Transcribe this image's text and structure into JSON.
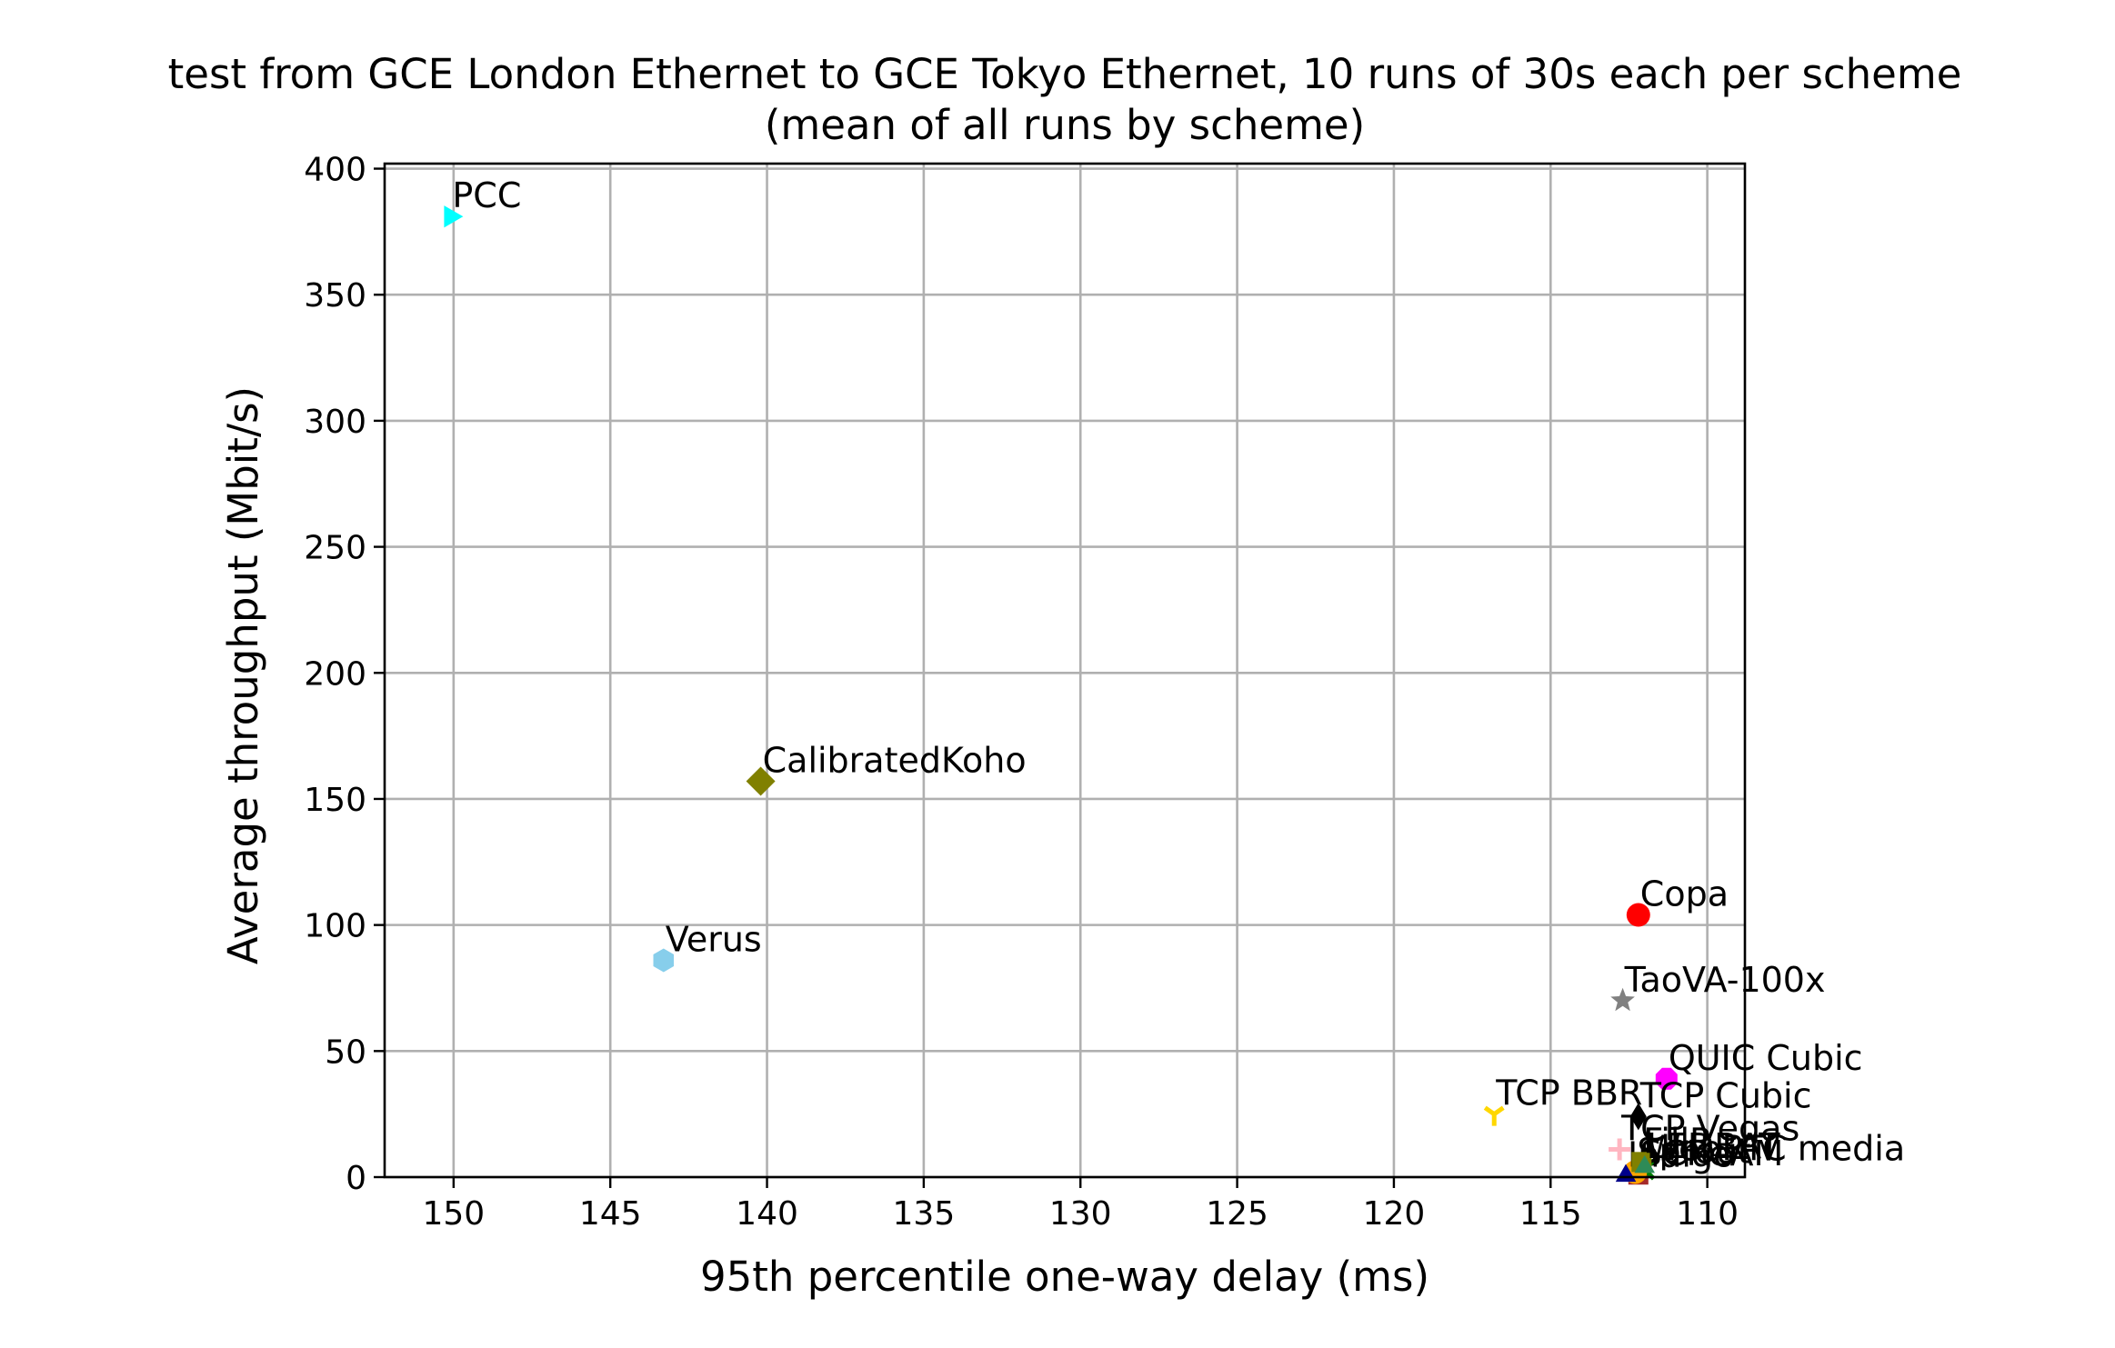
{
  "chart_data": {
    "type": "scatter",
    "title": "test from GCE London Ethernet to GCE Tokyo Ethernet, 10 runs of 30s each per scheme",
    "subtitle": "(mean of all runs by scheme)",
    "xlabel": "95th percentile one-way delay (ms)",
    "ylabel": "Average throughput (Mbit/s)",
    "xlim": [
      152.2,
      108.8
    ],
    "ylim": [
      0,
      402
    ],
    "x_inverted": true,
    "grid": true,
    "xticks": [
      150,
      145,
      140,
      135,
      130,
      125,
      120,
      115,
      110
    ],
    "yticks": [
      0,
      50,
      100,
      150,
      200,
      250,
      300,
      350,
      400
    ],
    "points": [
      {
        "label": "PCC",
        "x": 150.1,
        "y": 381,
        "marker": "triangle-right",
        "color": "#00ffff"
      },
      {
        "label": "CalibratedKoho",
        "x": 140.2,
        "y": 157,
        "marker": "diamond",
        "color": "#808000"
      },
      {
        "label": "Verus",
        "x": 143.3,
        "y": 86,
        "marker": "hexagon",
        "color": "#87ceeb"
      },
      {
        "label": "Copa",
        "x": 112.2,
        "y": 104,
        "marker": "circle",
        "color": "#ff0000"
      },
      {
        "label": "TaoVA-100x",
        "x": 112.7,
        "y": 70,
        "marker": "star",
        "color": "#808080"
      },
      {
        "label": "QUIC Cubic",
        "x": 111.3,
        "y": 39,
        "marker": "octagon",
        "color": "#ff00ff"
      },
      {
        "label": "TCP BBR",
        "x": 116.8,
        "y": 25,
        "marker": "tri-down",
        "color": "#ffd700"
      },
      {
        "label": "TCP Cubic",
        "x": 112.2,
        "y": 24,
        "marker": "diamond-thin",
        "color": "#000000"
      },
      {
        "label": "TCP Vegas",
        "x": 112.8,
        "y": 11,
        "marker": "plus",
        "color": "#ffb6c1"
      },
      {
        "label": "SCReAM",
        "x": 112.2,
        "y": 1,
        "marker": "square",
        "color": "#a52a2a"
      },
      {
        "label": "WebRTC media",
        "x": 112.0,
        "y": 3,
        "marker": "x",
        "color": "#008000"
      },
      {
        "label": "Sprout",
        "x": 112.3,
        "y": 2,
        "marker": "circle",
        "color": "#ffa500"
      },
      {
        "label": "Indigo",
        "x": 112.6,
        "y": 0.5,
        "marker": "triangle-up",
        "color": "#00008b"
      },
      {
        "label": "FillP",
        "x": 112.1,
        "y": 6,
        "marker": "square",
        "color": "#808000"
      },
      {
        "label": "LEDBAT",
        "x": 112.0,
        "y": 4,
        "marker": "triangle-up",
        "color": "#2e8b57"
      }
    ]
  }
}
